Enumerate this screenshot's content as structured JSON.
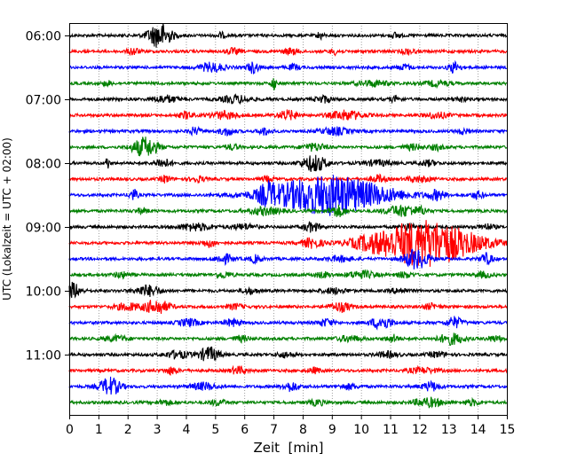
{
  "chart_data": {
    "type": "line",
    "title": "",
    "xlabel": "Zeit  [min]",
    "ylabel": "UTC (Lokalzeit = UTC + 02:00)",
    "xlim": [
      0,
      15
    ],
    "x_ticks": [
      "0",
      "1",
      "2",
      "3",
      "4",
      "5",
      "6",
      "7",
      "8",
      "9",
      "10",
      "11",
      "12",
      "13",
      "14",
      "15"
    ],
    "y_ticks": [
      "06:00",
      "07:00",
      "08:00",
      "09:00",
      "10:00",
      "11:00"
    ],
    "grid": true,
    "trace_colors": [
      "#000000",
      "#ff0000",
      "#0000ff",
      "#008000"
    ],
    "traces": [
      {
        "time": "06:00",
        "color": "#000000",
        "events": [
          [
            3.1,
            14,
            0.28
          ],
          [
            5.2,
            3,
            0.1
          ],
          [
            8.6,
            4,
            0.08
          ],
          [
            11.2,
            3,
            0.12
          ]
        ]
      },
      {
        "time": "06:07:30",
        "color": "#ff0000",
        "events": [
          [
            2.2,
            4,
            0.14
          ],
          [
            5.6,
            3,
            0.18
          ],
          [
            7.6,
            3,
            0.2
          ],
          [
            9.1,
            3,
            0.12
          ],
          [
            11.6,
            3,
            0.16
          ]
        ]
      },
      {
        "time": "06:15",
        "color": "#0000ff",
        "events": [
          [
            4.9,
            5,
            0.3
          ],
          [
            6.3,
            6,
            0.14
          ],
          [
            7.7,
            3,
            0.14
          ],
          [
            13.2,
            6,
            0.14
          ],
          [
            11.5,
            3,
            0.16
          ]
        ]
      },
      {
        "time": "06:22:30",
        "color": "#008000",
        "events": [
          [
            1.3,
            3,
            0.1
          ],
          [
            7.0,
            9,
            0.05
          ],
          [
            10.4,
            3,
            0.4
          ],
          [
            12.6,
            3,
            0.3
          ]
        ]
      },
      {
        "time": "07:00",
        "color": "#000000",
        "events": [
          [
            3.3,
            4,
            0.3
          ],
          [
            5.7,
            4,
            0.35
          ],
          [
            8.7,
            4,
            0.18
          ],
          [
            11.2,
            3,
            0.14
          ],
          [
            13.4,
            3,
            0.14
          ]
        ]
      },
      {
        "time": "07:07:30",
        "color": "#ff0000",
        "events": [
          [
            4.0,
            4,
            0.15
          ],
          [
            5.3,
            4,
            0.35
          ],
          [
            7.5,
            5,
            0.25
          ],
          [
            9.5,
            5,
            0.4
          ],
          [
            12.6,
            3,
            0.3
          ]
        ]
      },
      {
        "time": "07:15",
        "color": "#0000ff",
        "events": [
          [
            4.3,
            4,
            0.15
          ],
          [
            5.4,
            4,
            0.18
          ],
          [
            6.7,
            4,
            0.15
          ],
          [
            9.1,
            4,
            0.35
          ],
          [
            13.5,
            3,
            0.15
          ]
        ]
      },
      {
        "time": "07:22:30",
        "color": "#008000",
        "events": [
          [
            2.6,
            11,
            0.3
          ],
          [
            5.6,
            3,
            0.15
          ],
          [
            8.4,
            4,
            0.28
          ],
          [
            11.8,
            3,
            0.25
          ],
          [
            12.6,
            3,
            0.15
          ]
        ]
      },
      {
        "time": "08:00",
        "color": "#000000",
        "events": [
          [
            1.3,
            7,
            0.05
          ],
          [
            3.2,
            5,
            0.2
          ],
          [
            8.4,
            9,
            0.3
          ],
          [
            10.6,
            3,
            0.35
          ],
          [
            12.3,
            3,
            0.2
          ]
        ]
      },
      {
        "time": "08:07:30",
        "color": "#ff0000",
        "events": [
          [
            3.3,
            4,
            0.12
          ],
          [
            4.4,
            3,
            0.18
          ],
          [
            6.8,
            3,
            0.15
          ],
          [
            10.6,
            4,
            0.18
          ],
          [
            12.0,
            3,
            0.3
          ]
        ]
      },
      {
        "time": "08:15",
        "color": "#0000ff",
        "events": [
          [
            2.2,
            6,
            0.1
          ],
          [
            6.8,
            8,
            0.2
          ],
          [
            8.9,
            22,
            1.4
          ],
          [
            12.6,
            5,
            0.2
          ],
          [
            14.0,
            4,
            0.15
          ]
        ]
      },
      {
        "time": "08:22:30",
        "color": "#008000",
        "events": [
          [
            2.5,
            3,
            0.15
          ],
          [
            6.7,
            4,
            0.4
          ],
          [
            9.2,
            6,
            0.2
          ],
          [
            11.4,
            6,
            0.4
          ],
          [
            12.1,
            3,
            0.15
          ]
        ]
      },
      {
        "time": "09:00",
        "color": "#000000",
        "events": [
          [
            4.3,
            4,
            0.4
          ],
          [
            6.0,
            3,
            0.3
          ],
          [
            8.3,
            5,
            0.2
          ],
          [
            11.6,
            3,
            0.2
          ],
          [
            14.3,
            3,
            0.2
          ]
        ]
      },
      {
        "time": "09:07:30",
        "color": "#ff0000",
        "events": [
          [
            4.8,
            4,
            0.18
          ],
          [
            8.3,
            5,
            0.25
          ],
          [
            10.2,
            3,
            0.4
          ],
          [
            12.2,
            26,
            1.2
          ]
        ]
      },
      {
        "time": "09:15",
        "color": "#0000ff",
        "events": [
          [
            5.3,
            5,
            0.22
          ],
          [
            6.4,
            4,
            0.15
          ],
          [
            9.3,
            3,
            0.3
          ],
          [
            11.9,
            11,
            0.3
          ],
          [
            14.3,
            6,
            0.15
          ]
        ]
      },
      {
        "time": "09:22:30",
        "color": "#008000",
        "events": [
          [
            1.8,
            3,
            0.2
          ],
          [
            5.3,
            3,
            0.2
          ],
          [
            8.7,
            3,
            0.2
          ],
          [
            10.0,
            4,
            0.35
          ],
          [
            11.5,
            3,
            0.2
          ],
          [
            14.2,
            3,
            0.2
          ]
        ]
      },
      {
        "time": "10:00",
        "color": "#000000",
        "events": [
          [
            0.1,
            9,
            0.2
          ],
          [
            2.7,
            6,
            0.3
          ],
          [
            6.2,
            3,
            0.2
          ],
          [
            9.1,
            3,
            0.3
          ],
          [
            11.3,
            3,
            0.2
          ]
        ]
      },
      {
        "time": "10:07:30",
        "color": "#ff0000",
        "events": [
          [
            2.0,
            4,
            0.3
          ],
          [
            3.0,
            8,
            0.3
          ],
          [
            5.7,
            3,
            0.2
          ],
          [
            9.3,
            5,
            0.25
          ],
          [
            12.4,
            3,
            0.2
          ]
        ]
      },
      {
        "time": "10:15",
        "color": "#0000ff",
        "events": [
          [
            4.1,
            4,
            0.25
          ],
          [
            5.6,
            4,
            0.2
          ],
          [
            8.8,
            4,
            0.2
          ],
          [
            10.7,
            7,
            0.25
          ],
          [
            13.2,
            6,
            0.2
          ]
        ]
      },
      {
        "time": "10:22:30",
        "color": "#008000",
        "events": [
          [
            1.6,
            3,
            0.3
          ],
          [
            5.9,
            3,
            0.2
          ],
          [
            9.6,
            3,
            0.3
          ],
          [
            11.1,
            4,
            0.15
          ],
          [
            13.1,
            6,
            0.3
          ],
          [
            14.6,
            3,
            0.2
          ]
        ]
      },
      {
        "time": "11:00",
        "color": "#000000",
        "events": [
          [
            3.7,
            4,
            0.3
          ],
          [
            4.8,
            8,
            0.25
          ],
          [
            7.4,
            3,
            0.2
          ],
          [
            10.9,
            3,
            0.25
          ],
          [
            12.6,
            3,
            0.2
          ]
        ]
      },
      {
        "time": "11:07:30",
        "color": "#ff0000",
        "events": [
          [
            3.5,
            4,
            0.15
          ],
          [
            5.8,
            4,
            0.2
          ],
          [
            8.4,
            3,
            0.15
          ],
          [
            12.1,
            3,
            0.35
          ]
        ]
      },
      {
        "time": "11:15",
        "color": "#0000ff",
        "events": [
          [
            1.4,
            10,
            0.25
          ],
          [
            4.6,
            4,
            0.3
          ],
          [
            7.6,
            5,
            0.2
          ],
          [
            9.6,
            3,
            0.2
          ],
          [
            12.4,
            5,
            0.2
          ]
        ]
      },
      {
        "time": "11:22:30",
        "color": "#008000",
        "events": [
          [
            3.3,
            3,
            0.15
          ],
          [
            5.1,
            3,
            0.2
          ],
          [
            8.5,
            3,
            0.2
          ],
          [
            12.3,
            5,
            0.35
          ],
          [
            13.8,
            3,
            0.2
          ]
        ]
      }
    ]
  }
}
